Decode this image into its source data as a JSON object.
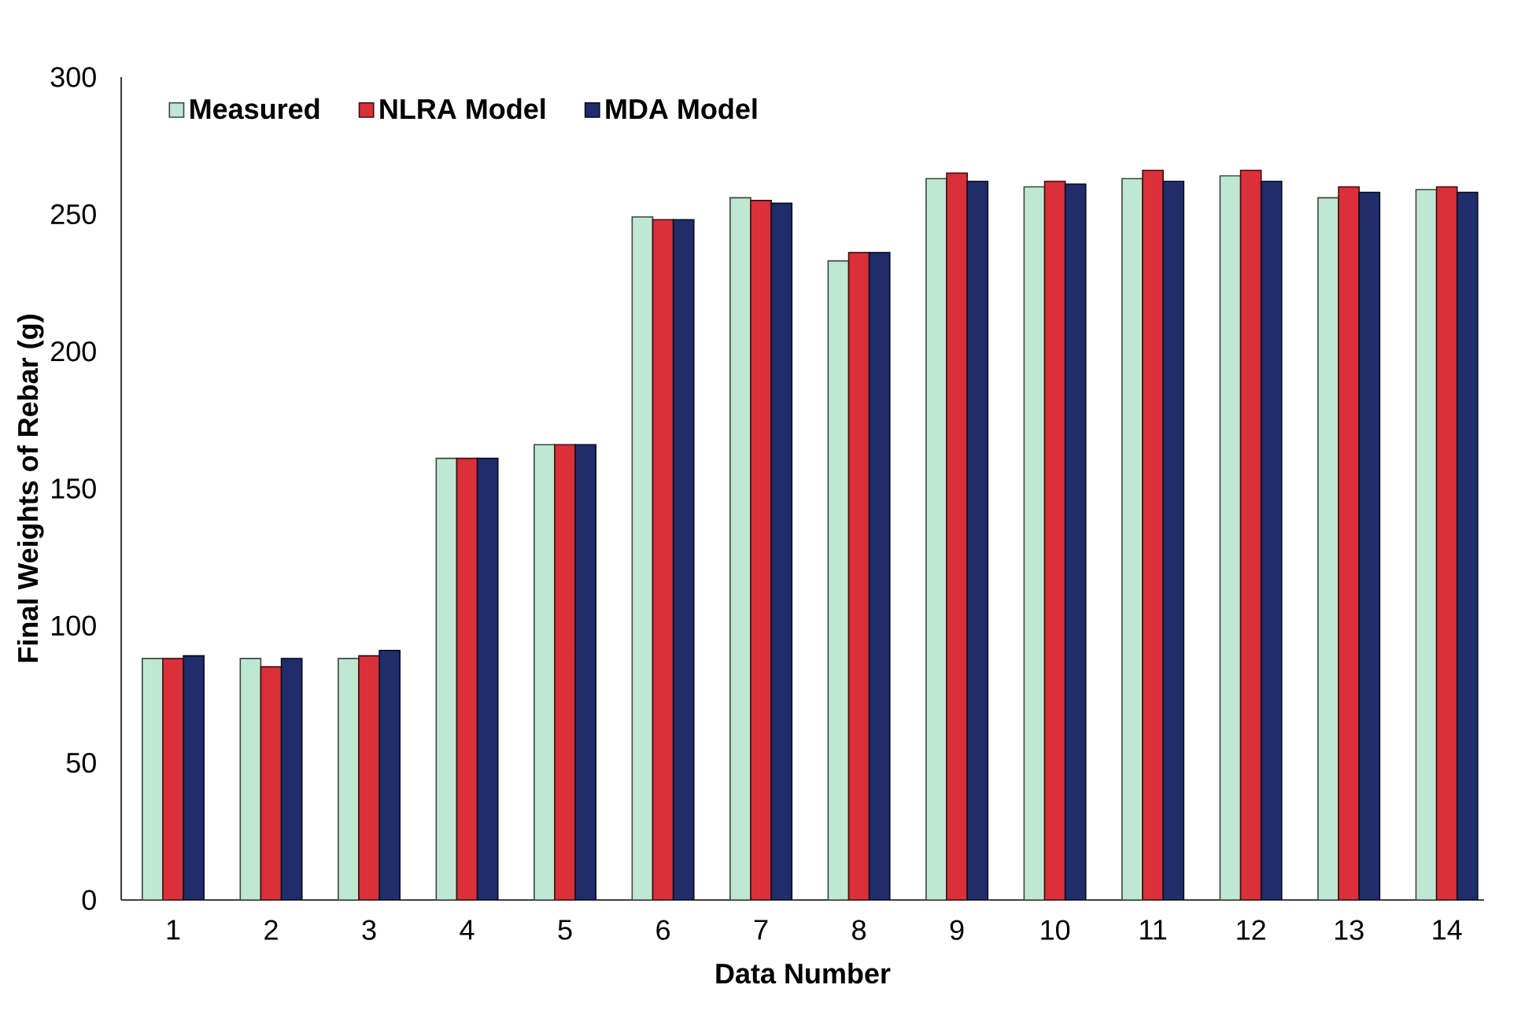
{
  "chart_data": {
    "type": "bar",
    "xlabel": "Data Number",
    "ylabel": "Final Weights of Rebar (g)",
    "categories": [
      "1",
      "2",
      "3",
      "4",
      "5",
      "6",
      "7",
      "8",
      "9",
      "10",
      "11",
      "12",
      "13",
      "14"
    ],
    "series": [
      {
        "name": "Measured",
        "color": "#bfe8d2",
        "values": [
          88,
          88,
          88,
          161,
          166,
          249,
          256,
          233,
          263,
          260,
          263,
          264,
          256,
          259
        ]
      },
      {
        "name": "NLRA Model",
        "color": "#d9303a",
        "values": [
          88,
          85,
          89,
          161,
          166,
          248,
          255,
          236,
          265,
          262,
          266,
          266,
          260,
          260
        ]
      },
      {
        "name": "MDA Model",
        "color": "#1f2d6b",
        "values": [
          89,
          88,
          91,
          161,
          166,
          248,
          254,
          236,
          262,
          261,
          262,
          262,
          258,
          258
        ]
      }
    ],
    "ylim": [
      0,
      300
    ],
    "yticks": [
      0,
      50,
      100,
      150,
      200,
      250,
      300
    ],
    "grid": false,
    "legend": "top left"
  }
}
